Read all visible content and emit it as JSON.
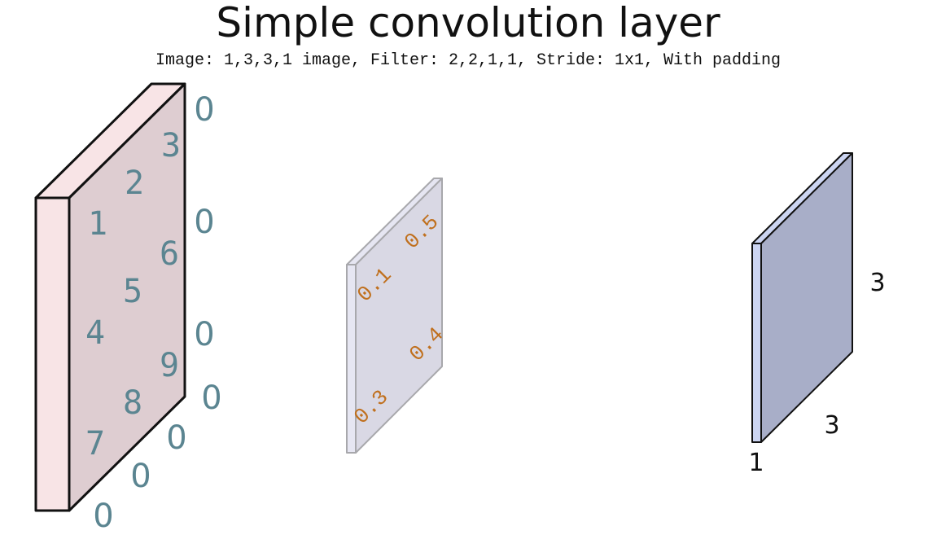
{
  "title": "Simple convolution layer",
  "subtitle": "Image: 1,3,3,1 image, Filter: 2,2,1,1, Stride: 1x1, With padding",
  "image": {
    "values": [
      "1",
      "2",
      "3",
      "4",
      "5",
      "6",
      "7",
      "8",
      "9"
    ],
    "padding": [
      "0",
      "0",
      "0",
      "0",
      "0",
      "0",
      "0"
    ],
    "colors": {
      "front": "#f8e4e6",
      "face": "#decdd1",
      "text": "#5b8591"
    }
  },
  "filter": {
    "values": [
      "0.1",
      "0.5",
      "0.3",
      "0.4"
    ],
    "colors": {
      "front": "#e6e6f2",
      "face": "#d9d8e4",
      "text": "#c0701e"
    }
  },
  "output": {
    "depth_label": "1",
    "width_label": "3",
    "height_label": "3",
    "colors": {
      "front": "#ccd5f2",
      "face": "#a8aec8"
    }
  }
}
